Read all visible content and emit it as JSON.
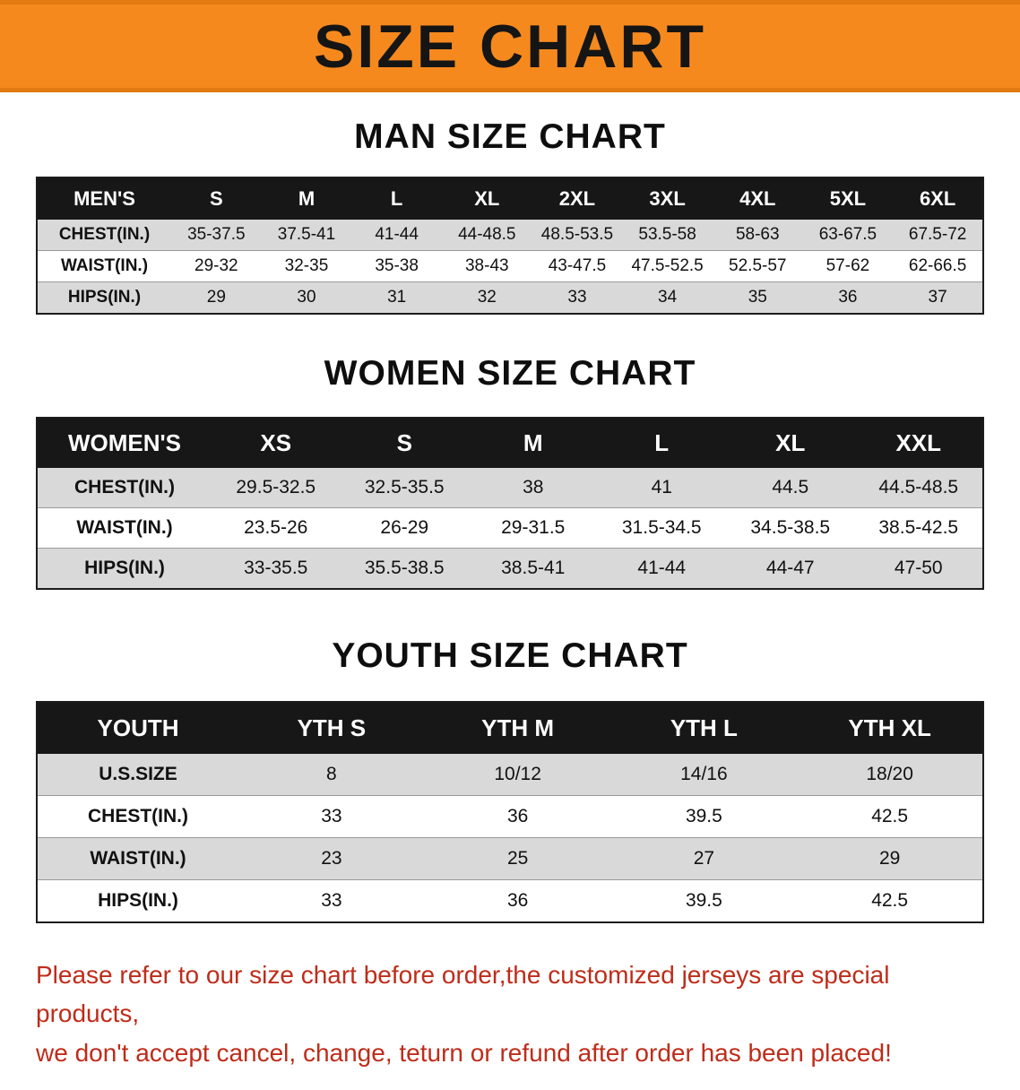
{
  "banner": {
    "title": "SIZE CHART",
    "bg_color": "#f6891e",
    "text_color": "#151515"
  },
  "chart_data": [
    {
      "type": "table",
      "title": "MAN SIZE CHART",
      "header": [
        "MEN'S",
        "S",
        "M",
        "L",
        "XL",
        "2XL",
        "3XL",
        "4XL",
        "5XL",
        "6XL"
      ],
      "rows": [
        [
          "CHEST(IN.)",
          "35-37.5",
          "37.5-41",
          "41-44",
          "44-48.5",
          "48.5-53.5",
          "53.5-58",
          "58-63",
          "63-67.5",
          "67.5-72"
        ],
        [
          "WAIST(IN.)",
          "29-32",
          "32-35",
          "35-38",
          "38-43",
          "43-47.5",
          "47.5-52.5",
          "52.5-57",
          "57-62",
          "62-66.5"
        ],
        [
          "HIPS(IN.)",
          "29",
          "30",
          "31",
          "32",
          "33",
          "34",
          "35",
          "36",
          "37"
        ]
      ]
    },
    {
      "type": "table",
      "title": "WOMEN SIZE CHART",
      "header": [
        "WOMEN'S",
        "XS",
        "S",
        "M",
        "L",
        "XL",
        "XXL"
      ],
      "rows": [
        [
          "CHEST(IN.)",
          "29.5-32.5",
          "32.5-35.5",
          "38",
          "41",
          "44.5",
          "44.5-48.5"
        ],
        [
          "WAIST(IN.)",
          "23.5-26",
          "26-29",
          "29-31.5",
          "31.5-34.5",
          "34.5-38.5",
          "38.5-42.5"
        ],
        [
          "HIPS(IN.)",
          "33-35.5",
          "35.5-38.5",
          "38.5-41",
          "41-44",
          "44-47",
          "47-50"
        ]
      ]
    },
    {
      "type": "table",
      "title": "YOUTH SIZE CHART",
      "header": [
        "YOUTH",
        "YTH S",
        "YTH M",
        "YTH L",
        "YTH XL"
      ],
      "rows": [
        [
          "U.S.SIZE",
          "8",
          "10/12",
          "14/16",
          "18/20"
        ],
        [
          "CHEST(IN.)",
          "33",
          "36",
          "39.5",
          "42.5"
        ],
        [
          "WAIST(IN.)",
          "23",
          "25",
          "27",
          "29"
        ],
        [
          "HIPS(IN.)",
          "33",
          "36",
          "39.5",
          "42.5"
        ]
      ]
    }
  ],
  "disclaimer": {
    "line1": "Please refer to our size chart before order,the customized jerseys are special products,",
    "line2": "we don't accept cancel, change, teturn or refund after order has been placed!",
    "color": "#bf2c1a"
  }
}
